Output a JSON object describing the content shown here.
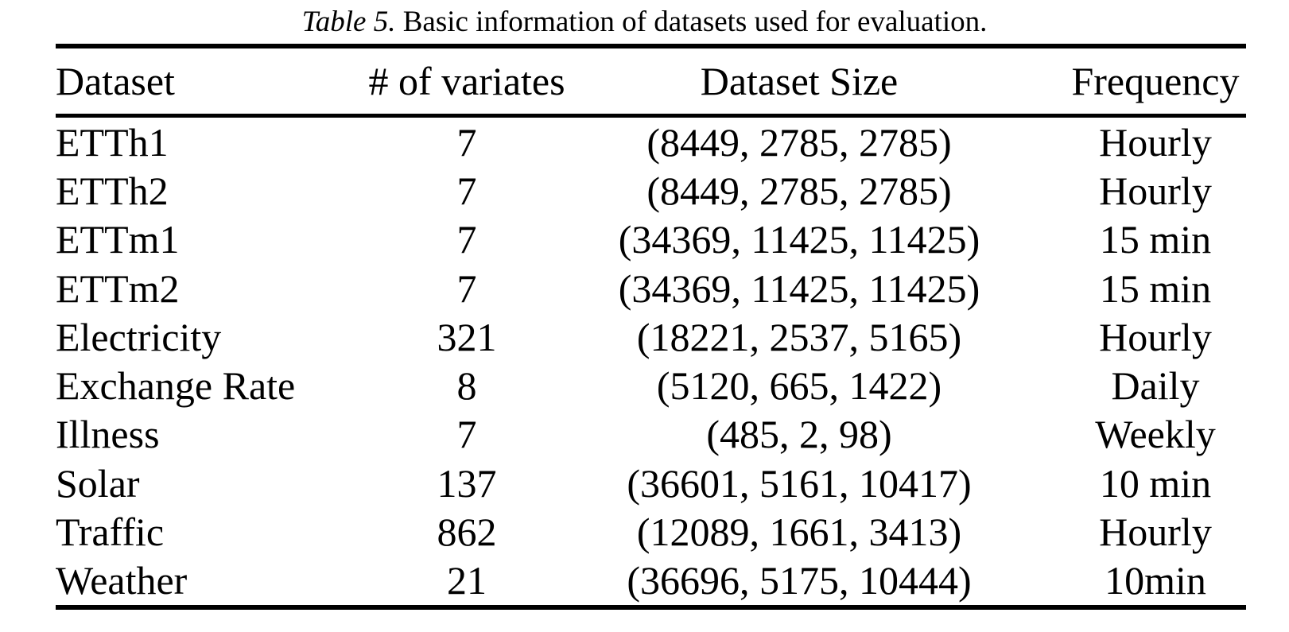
{
  "caption": {
    "label": "Table 5.",
    "text": " Basic information of datasets used for evaluation."
  },
  "colors": {
    "text": "#000000",
    "background": "#ffffff",
    "rule": "#000000"
  },
  "chart_data": {
    "type": "table",
    "title": "Table 5. Basic information of datasets used for evaluation.",
    "columns": [
      "Dataset",
      "# of variates",
      "Dataset Size",
      "Frequency"
    ],
    "rows": [
      {
        "dataset": "ETTh1",
        "variates": "7",
        "size": "(8449, 2785, 2785)",
        "frequency": "Hourly"
      },
      {
        "dataset": "ETTh2",
        "variates": "7",
        "size": "(8449, 2785, 2785)",
        "frequency": "Hourly"
      },
      {
        "dataset": "ETTm1",
        "variates": "7",
        "size": "(34369, 11425, 11425)",
        "frequency": "15 min"
      },
      {
        "dataset": "ETTm2",
        "variates": "7",
        "size": "(34369, 11425, 11425)",
        "frequency": "15 min"
      },
      {
        "dataset": "Electricity",
        "variates": "321",
        "size": "(18221, 2537, 5165)",
        "frequency": "Hourly"
      },
      {
        "dataset": "Exchange Rate",
        "variates": "8",
        "size": "(5120, 665, 1422)",
        "frequency": "Daily"
      },
      {
        "dataset": "Illness",
        "variates": "7",
        "size": "(485, 2, 98)",
        "frequency": "Weekly"
      },
      {
        "dataset": "Solar",
        "variates": "137",
        "size": "(36601, 5161, 10417)",
        "frequency": "10 min"
      },
      {
        "dataset": "Traffic",
        "variates": "862",
        "size": "(12089, 1661, 3413)",
        "frequency": "Hourly"
      },
      {
        "dataset": "Weather",
        "variates": "21",
        "size": "(36696, 5175, 10444)",
        "frequency": "10min"
      }
    ]
  }
}
